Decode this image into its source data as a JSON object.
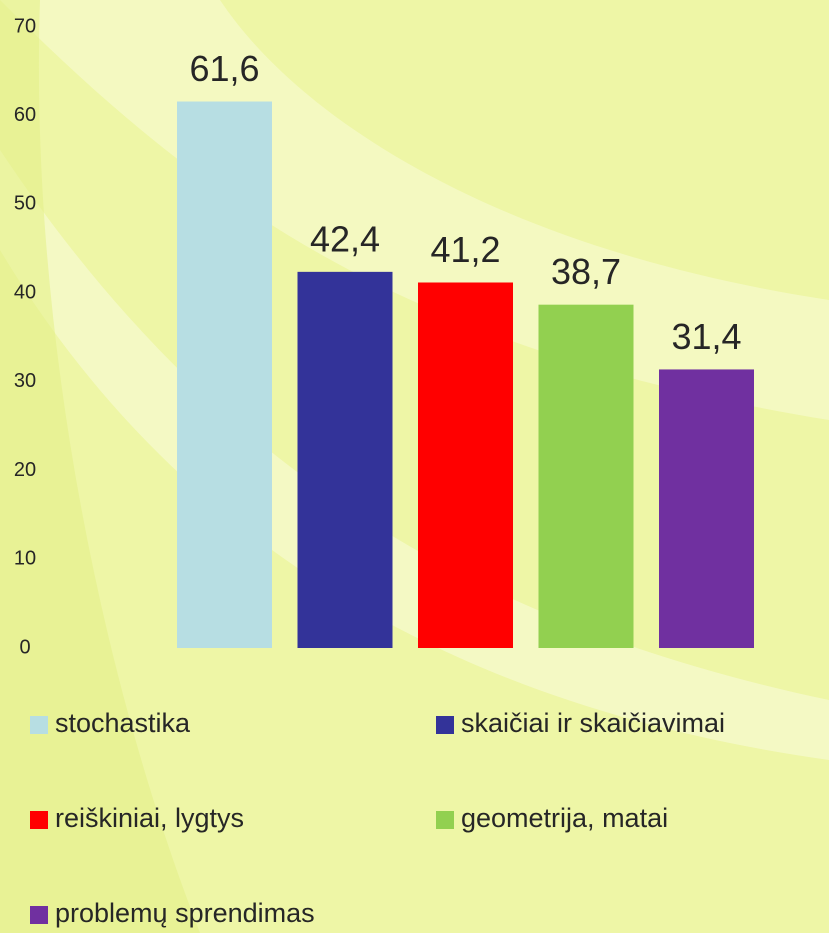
{
  "chart_data": {
    "type": "bar",
    "series": [
      {
        "name": "stochastika",
        "color": "#b7dee3",
        "values": [
          61.6
        ],
        "value_labels": [
          "61,6"
        ]
      },
      {
        "name": "skaičiai ir skaičiavimai",
        "color": "#333399",
        "values": [
          42.4
        ],
        "value_labels": [
          "42,4"
        ]
      },
      {
        "name": "reiškiniai, lygtys",
        "color": "#ff0000",
        "values": [
          41.2
        ],
        "value_labels": [
          "41,2"
        ]
      },
      {
        "name": "geometrija, matai",
        "color": "#92d050",
        "values": [
          38.7
        ],
        "value_labels": [
          "38,7"
        ]
      },
      {
        "name": "problemų sprendimas",
        "color": "#7030a0",
        "values": [
          31.4
        ],
        "value_labels": [
          "31,4"
        ]
      }
    ],
    "ylim": [
      0,
      70
    ],
    "yticks": [
      0,
      10,
      20,
      30,
      40,
      50,
      60,
      70
    ],
    "grid": false,
    "legend": "bottom"
  }
}
